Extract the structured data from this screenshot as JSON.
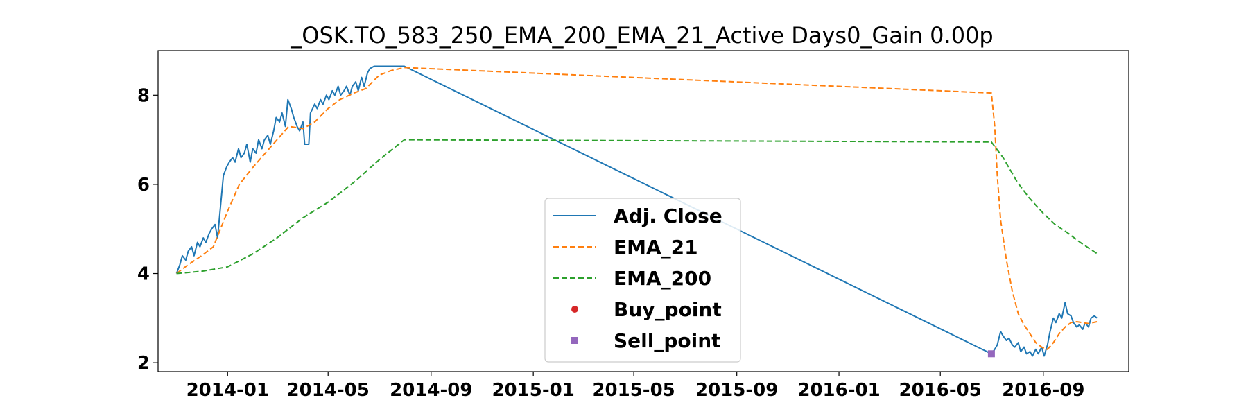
{
  "chart_data": {
    "type": "line",
    "title": "_OSK.TO_583_250_EMA_200_EMA_21_Active Days0_Gain   0.00p",
    "xlabel": "",
    "ylabel": "",
    "xlim": [
      "2013-10-10",
      "2016-12-12"
    ],
    "ylim": [
      1.8,
      9.0
    ],
    "xticks": [
      "2014-01",
      "2014-05",
      "2014-09",
      "2015-01",
      "2015-05",
      "2015-09",
      "2016-01",
      "2016-05",
      "2016-09"
    ],
    "yticks": [
      2,
      4,
      6,
      8
    ],
    "grid": false,
    "legend_position": "lower center",
    "series": [
      {
        "name": "Adj. Close",
        "color": "#1f77b4",
        "style": "solid",
        "points": [
          [
            "2013-11-01",
            4.0
          ],
          [
            "2013-11-05",
            4.2
          ],
          [
            "2013-11-08",
            4.4
          ],
          [
            "2013-11-12",
            4.3
          ],
          [
            "2013-11-15",
            4.5
          ],
          [
            "2013-11-19",
            4.6
          ],
          [
            "2013-11-22",
            4.4
          ],
          [
            "2013-11-26",
            4.7
          ],
          [
            "2013-11-29",
            4.6
          ],
          [
            "2013-12-03",
            4.8
          ],
          [
            "2013-12-06",
            4.7
          ],
          [
            "2013-12-10",
            4.9
          ],
          [
            "2013-12-13",
            5.0
          ],
          [
            "2013-12-17",
            5.1
          ],
          [
            "2013-12-20",
            4.8
          ],
          [
            "2013-12-24",
            5.6
          ],
          [
            "2013-12-27",
            6.2
          ],
          [
            "2013-12-31",
            6.4
          ],
          [
            "2014-01-03",
            6.5
          ],
          [
            "2014-01-07",
            6.6
          ],
          [
            "2014-01-10",
            6.5
          ],
          [
            "2014-01-14",
            6.8
          ],
          [
            "2014-01-17",
            6.6
          ],
          [
            "2014-01-21",
            6.7
          ],
          [
            "2014-01-24",
            6.9
          ],
          [
            "2014-01-28",
            6.5
          ],
          [
            "2014-01-31",
            6.8
          ],
          [
            "2014-02-04",
            6.7
          ],
          [
            "2014-02-07",
            7.0
          ],
          [
            "2014-02-11",
            6.8
          ],
          [
            "2014-02-14",
            7.0
          ],
          [
            "2014-02-18",
            7.1
          ],
          [
            "2014-02-21",
            6.9
          ],
          [
            "2014-02-25",
            7.2
          ],
          [
            "2014-02-28",
            7.5
          ],
          [
            "2014-03-04",
            7.4
          ],
          [
            "2014-03-07",
            7.6
          ],
          [
            "2014-03-11",
            7.3
          ],
          [
            "2014-03-14",
            7.9
          ],
          [
            "2014-03-18",
            7.7
          ],
          [
            "2014-03-21",
            7.5
          ],
          [
            "2014-03-25",
            7.3
          ],
          [
            "2014-03-28",
            7.2
          ],
          [
            "2014-04-01",
            7.4
          ],
          [
            "2014-04-03",
            6.9
          ],
          [
            "2014-04-08",
            6.9
          ],
          [
            "2014-04-10",
            7.6
          ],
          [
            "2014-04-15",
            7.8
          ],
          [
            "2014-04-18",
            7.7
          ],
          [
            "2014-04-22",
            7.9
          ],
          [
            "2014-04-25",
            7.8
          ],
          [
            "2014-04-29",
            8.0
          ],
          [
            "2014-05-02",
            7.9
          ],
          [
            "2014-05-06",
            8.1
          ],
          [
            "2014-05-09",
            8.0
          ],
          [
            "2014-05-13",
            8.2
          ],
          [
            "2014-05-16",
            8.0
          ],
          [
            "2014-05-20",
            8.1
          ],
          [
            "2014-05-23",
            8.2
          ],
          [
            "2014-05-27",
            8.0
          ],
          [
            "2014-05-30",
            8.2
          ],
          [
            "2014-06-03",
            8.3
          ],
          [
            "2014-06-06",
            8.1
          ],
          [
            "2014-06-10",
            8.4
          ],
          [
            "2014-06-13",
            8.2
          ],
          [
            "2014-06-17",
            8.5
          ],
          [
            "2014-06-20",
            8.6
          ],
          [
            "2014-06-25",
            8.65
          ],
          [
            "2014-07-01",
            8.65
          ],
          [
            "2014-07-15",
            8.65
          ],
          [
            "2014-07-31",
            8.65
          ],
          [
            "2016-07-01",
            2.2
          ],
          [
            "2016-07-05",
            2.3
          ],
          [
            "2016-07-08",
            2.4
          ],
          [
            "2016-07-12",
            2.7
          ],
          [
            "2016-07-15",
            2.6
          ],
          [
            "2016-07-19",
            2.5
          ],
          [
            "2016-07-22",
            2.55
          ],
          [
            "2016-07-26",
            2.4
          ],
          [
            "2016-07-29",
            2.35
          ],
          [
            "2016-08-02",
            2.45
          ],
          [
            "2016-08-05",
            2.25
          ],
          [
            "2016-08-09",
            2.35
          ],
          [
            "2016-08-12",
            2.2
          ],
          [
            "2016-08-16",
            2.25
          ],
          [
            "2016-08-19",
            2.15
          ],
          [
            "2016-08-23",
            2.3
          ],
          [
            "2016-08-26",
            2.2
          ],
          [
            "2016-08-30",
            2.35
          ],
          [
            "2016-09-02",
            2.15
          ],
          [
            "2016-09-06",
            2.4
          ],
          [
            "2016-09-09",
            2.7
          ],
          [
            "2016-09-13",
            3.0
          ],
          [
            "2016-09-16",
            2.9
          ],
          [
            "2016-09-20",
            3.1
          ],
          [
            "2016-09-23",
            3.0
          ],
          [
            "2016-09-27",
            3.35
          ],
          [
            "2016-09-30",
            3.1
          ],
          [
            "2016-10-04",
            3.05
          ],
          [
            "2016-10-07",
            2.9
          ],
          [
            "2016-10-11",
            2.8
          ],
          [
            "2016-10-14",
            2.85
          ],
          [
            "2016-10-18",
            2.75
          ],
          [
            "2016-10-21",
            2.9
          ],
          [
            "2016-10-25",
            2.8
          ],
          [
            "2016-10-28",
            3.0
          ],
          [
            "2016-11-01",
            3.05
          ],
          [
            "2016-11-04",
            3.0
          ]
        ]
      },
      {
        "name": "EMA_21",
        "color": "#ff7f0e",
        "style": "dashed",
        "points": [
          [
            "2013-11-01",
            4.0
          ],
          [
            "2013-11-15",
            4.2
          ],
          [
            "2013-12-01",
            4.4
          ],
          [
            "2013-12-15",
            4.6
          ],
          [
            "2014-01-01",
            5.4
          ],
          [
            "2014-01-15",
            6.0
          ],
          [
            "2014-02-01",
            6.4
          ],
          [
            "2014-02-15",
            6.7
          ],
          [
            "2014-03-01",
            7.0
          ],
          [
            "2014-03-15",
            7.3
          ],
          [
            "2014-04-01",
            7.25
          ],
          [
            "2014-04-15",
            7.4
          ],
          [
            "2014-05-01",
            7.7
          ],
          [
            "2014-05-15",
            7.9
          ],
          [
            "2014-06-01",
            8.05
          ],
          [
            "2014-06-15",
            8.15
          ],
          [
            "2014-07-01",
            8.45
          ],
          [
            "2014-07-15",
            8.55
          ],
          [
            "2014-07-31",
            8.62
          ],
          [
            "2016-07-01",
            8.05
          ],
          [
            "2016-07-05",
            7.3
          ],
          [
            "2016-07-08",
            6.2
          ],
          [
            "2016-07-12",
            5.2
          ],
          [
            "2016-07-19",
            4.3
          ],
          [
            "2016-07-26",
            3.6
          ],
          [
            "2016-08-02",
            3.1
          ],
          [
            "2016-08-09",
            2.85
          ],
          [
            "2016-08-16",
            2.65
          ],
          [
            "2016-08-23",
            2.45
          ],
          [
            "2016-08-30",
            2.35
          ],
          [
            "2016-09-06",
            2.3
          ],
          [
            "2016-09-13",
            2.45
          ],
          [
            "2016-09-20",
            2.65
          ],
          [
            "2016-09-27",
            2.8
          ],
          [
            "2016-10-04",
            2.9
          ],
          [
            "2016-10-11",
            2.92
          ],
          [
            "2016-10-18",
            2.9
          ],
          [
            "2016-10-25",
            2.88
          ],
          [
            "2016-11-04",
            2.92
          ]
        ]
      },
      {
        "name": "EMA_200",
        "color": "#2ca02c",
        "style": "dashed",
        "points": [
          [
            "2013-11-01",
            4.0
          ],
          [
            "2013-12-01",
            4.05
          ],
          [
            "2014-01-01",
            4.15
          ],
          [
            "2014-02-01",
            4.45
          ],
          [
            "2014-03-01",
            4.8
          ],
          [
            "2014-04-01",
            5.25
          ],
          [
            "2014-05-01",
            5.6
          ],
          [
            "2014-06-01",
            6.05
          ],
          [
            "2014-07-01",
            6.55
          ],
          [
            "2014-07-31",
            7.0
          ],
          [
            "2016-07-01",
            6.95
          ],
          [
            "2016-07-15",
            6.6
          ],
          [
            "2016-08-01",
            6.05
          ],
          [
            "2016-08-15",
            5.7
          ],
          [
            "2016-09-01",
            5.35
          ],
          [
            "2016-09-15",
            5.1
          ],
          [
            "2016-10-01",
            4.9
          ],
          [
            "2016-10-15",
            4.7
          ],
          [
            "2016-11-04",
            4.45
          ]
        ]
      },
      {
        "name": "Buy_point",
        "color": "#d62728",
        "style": "marker-circle",
        "points": []
      },
      {
        "name": "Sell_point",
        "color": "#9467bd",
        "style": "marker-square",
        "points": [
          [
            "2016-07-01",
            2.2
          ]
        ]
      }
    ]
  }
}
